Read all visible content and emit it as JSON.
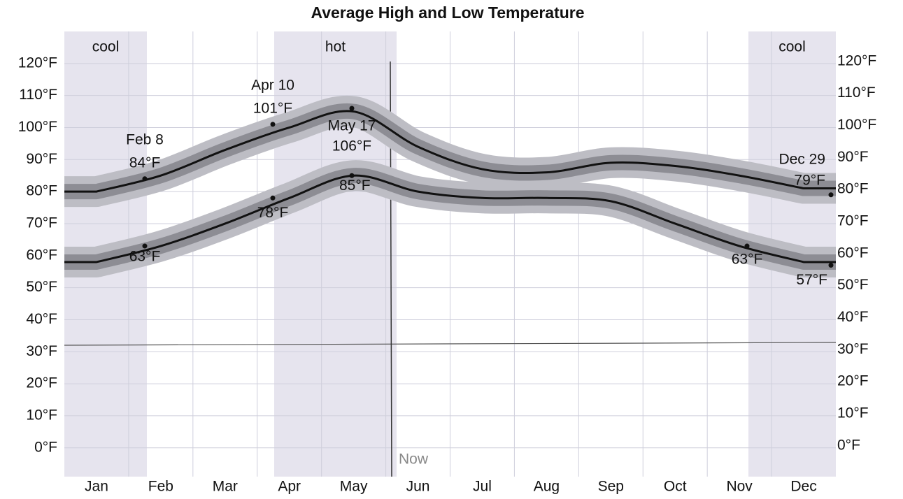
{
  "chart_data": {
    "type": "line",
    "title": "Average High and Low Temperature",
    "categories": [
      "Jan",
      "Feb",
      "Mar",
      "Apr",
      "May",
      "Jun",
      "Jul",
      "Aug",
      "Sep",
      "Oct",
      "Nov",
      "Dec"
    ],
    "series": [
      {
        "name": "High",
        "color": "#111111",
        "values": [
          80,
          85,
          93,
          100,
          105,
          94,
          87,
          86,
          89,
          88,
          85,
          81
        ]
      },
      {
        "name": "Low",
        "color": "#111111",
        "values": [
          58,
          63,
          70,
          78,
          85,
          80,
          78,
          78,
          77,
          70,
          63,
          58
        ]
      }
    ],
    "ylim": [
      -9,
      130
    ],
    "yticks": [
      {
        "value": 0,
        "label": "0°F"
      },
      {
        "value": 10,
        "label": "10°F"
      },
      {
        "value": 20,
        "label": "20°F"
      },
      {
        "value": 30,
        "label": "30°F"
      },
      {
        "value": 40,
        "label": "40°F"
      },
      {
        "value": 50,
        "label": "50°F"
      },
      {
        "value": 60,
        "label": "60°F"
      },
      {
        "value": 70,
        "label": "70°F"
      },
      {
        "value": 80,
        "label": "80°F"
      },
      {
        "value": 90,
        "label": "90°F"
      },
      {
        "value": 100,
        "label": "100°F"
      },
      {
        "value": 110,
        "label": "110°F"
      },
      {
        "value": 120,
        "label": "120°F"
      }
    ],
    "grid": true,
    "seasons": [
      "cool",
      "hot",
      "cool"
    ],
    "now_label": "Now",
    "annotations": [
      {
        "date": "Feb 8",
        "value": 84,
        "label": "84°F"
      },
      {
        "date": "Apr 10",
        "value": 101,
        "label": "101°F"
      },
      {
        "date": "May 17",
        "value": 106,
        "label": "106°F"
      },
      {
        "date": "Dec 29",
        "value": 79,
        "label": "79°F"
      },
      {
        "value": 63,
        "label": "63°F"
      },
      {
        "value": 78,
        "label": "78°F"
      },
      {
        "value": 85,
        "label": "85°F"
      },
      {
        "value": 63,
        "label": "63°F"
      },
      {
        "value": 57,
        "label": "57°F"
      }
    ]
  }
}
